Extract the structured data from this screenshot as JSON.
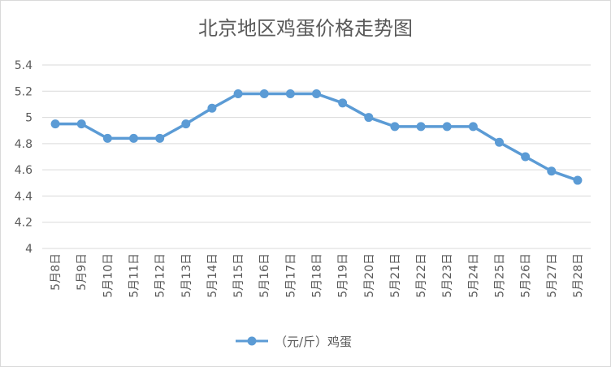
{
  "chart_data": {
    "type": "line",
    "title": "北京地区鸡蛋价格走势图",
    "categories": [
      "5月8日",
      "5月9日",
      "5月10日",
      "5月11日",
      "5月12日",
      "5月13日",
      "5月14日",
      "5月15日",
      "5月16日",
      "5月17日",
      "5月18日",
      "5月19日",
      "5月20日",
      "5月21日",
      "5月22日",
      "5月23日",
      "5月24日",
      "5月25日",
      "5月26日",
      "5月27日",
      "5月28日"
    ],
    "series": [
      {
        "name": "（元/斤）鸡蛋",
        "values": [
          4.95,
          4.95,
          4.84,
          4.84,
          4.84,
          4.95,
          5.07,
          5.18,
          5.18,
          5.18,
          5.18,
          5.11,
          5.0,
          4.93,
          4.93,
          4.93,
          4.93,
          4.81,
          4.7,
          4.59,
          4.52
        ]
      }
    ],
    "ylim": [
      4,
      5.4
    ],
    "yticks": [
      "4",
      "4.2",
      "4.4",
      "4.6",
      "4.8",
      "5",
      "5.2",
      "5.4"
    ],
    "grid": true,
    "legend": "bottom",
    "colors": {
      "series": "#5b9bd5",
      "grid": "#d9d9d9",
      "text": "#595959"
    }
  }
}
